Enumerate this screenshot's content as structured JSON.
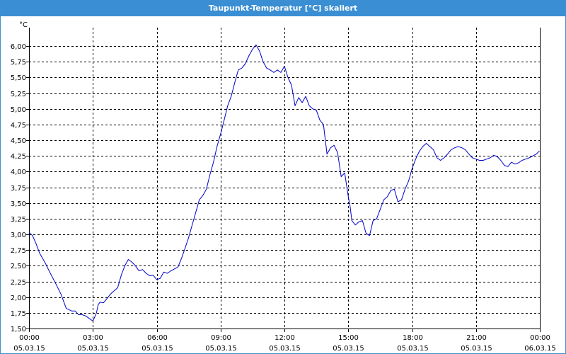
{
  "window": {
    "title": "Taupunkt-Temperatur [°C] skaliert"
  },
  "chart_data": {
    "type": "line",
    "title": "Taupunkt-Temperatur [°C] skaliert",
    "y_unit": "°C",
    "ylim": [
      1.5,
      6.25
    ],
    "xlim": [
      "05.03.15 00:00",
      "06.03.15 00:00"
    ],
    "y_ticks": [
      "1,50",
      "1,75",
      "2,00",
      "2,25",
      "2,50",
      "2,75",
      "3,00",
      "3,25",
      "3,50",
      "3,75",
      "4,00",
      "4,25",
      "4,50",
      "4,75",
      "5,00",
      "5,25",
      "5,50",
      "5,75",
      "6,00"
    ],
    "x_ticks": [
      {
        "time": "00:00",
        "date": "05.03.15"
      },
      {
        "time": "03:00",
        "date": "05.03.15"
      },
      {
        "time": "06:00",
        "date": "05.03.15"
      },
      {
        "time": "09:00",
        "date": "05.03.15"
      },
      {
        "time": "12:00",
        "date": "05.03.15"
      },
      {
        "time": "15:00",
        "date": "05.03.15"
      },
      {
        "time": "18:00",
        "date": "05.03.15"
      },
      {
        "time": "21:00",
        "date": "05.03.15"
      },
      {
        "time": "00:00",
        "date": "06.03.15"
      }
    ],
    "grid": true,
    "line_color": "#0000cc",
    "series": [
      {
        "x": [
          "00:00",
          "00:10",
          "00:20",
          "00:30",
          "00:45",
          "01:00",
          "01:15",
          "01:30",
          "01:45",
          "02:00",
          "02:10",
          "02:20",
          "02:30",
          "02:40",
          "02:50",
          "03:00",
          "03:05",
          "03:10",
          "03:15",
          "03:20",
          "03:30",
          "03:40",
          "03:50",
          "04:00",
          "04:10",
          "04:20",
          "04:30",
          "04:40",
          "04:50",
          "05:00",
          "05:10",
          "05:20",
          "05:30",
          "05:40",
          "05:50",
          "06:00",
          "06:10",
          "06:20",
          "06:30",
          "06:40",
          "06:50",
          "07:00",
          "07:10",
          "07:20",
          "07:30",
          "07:40",
          "07:50",
          "08:00",
          "08:10",
          "08:20",
          "08:30",
          "08:40",
          "08:50",
          "09:00",
          "09:10",
          "09:20",
          "09:30",
          "09:40",
          "09:50",
          "10:00",
          "10:10",
          "10:20",
          "10:30",
          "10:40",
          "10:50",
          "11:00",
          "11:10",
          "11:20",
          "11:30",
          "11:40",
          "11:50",
          "12:00",
          "12:10",
          "12:20",
          "12:30",
          "12:40",
          "12:50",
          "13:00",
          "13:10",
          "13:20",
          "13:30",
          "13:40",
          "13:50",
          "14:00",
          "14:10",
          "14:20",
          "14:30",
          "14:40",
          "14:50",
          "15:00",
          "15:05",
          "15:10",
          "15:20",
          "15:30",
          "15:40",
          "15:50",
          "16:00",
          "16:10",
          "16:20",
          "16:30",
          "16:40",
          "16:50",
          "17:00",
          "17:10",
          "17:20",
          "17:30",
          "17:40",
          "17:50",
          "18:00",
          "18:10",
          "18:20",
          "18:30",
          "18:40",
          "18:50",
          "19:00",
          "19:10",
          "19:20",
          "19:30",
          "19:40",
          "19:50",
          "20:00",
          "20:10",
          "20:20",
          "20:30",
          "20:40",
          "20:50",
          "21:00",
          "21:10",
          "21:20",
          "21:30",
          "21:40",
          "21:50",
          "22:00",
          "22:10",
          "22:20",
          "22:30",
          "22:40",
          "22:50",
          "23:00",
          "23:10",
          "23:20",
          "23:30",
          "23:40",
          "23:50",
          "23:59"
        ],
        "values": [
          3.03,
          2.98,
          2.85,
          2.7,
          2.55,
          2.38,
          2.22,
          2.05,
          1.82,
          1.78,
          1.78,
          1.72,
          1.72,
          1.7,
          1.66,
          1.62,
          1.68,
          1.75,
          1.88,
          1.92,
          1.91,
          1.98,
          2.05,
          2.1,
          2.15,
          2.35,
          2.5,
          2.6,
          2.56,
          2.5,
          2.42,
          2.44,
          2.38,
          2.34,
          2.35,
          2.28,
          2.3,
          2.4,
          2.38,
          2.42,
          2.45,
          2.48,
          2.62,
          2.78,
          2.95,
          3.15,
          3.35,
          3.55,
          3.62,
          3.72,
          3.95,
          4.15,
          4.4,
          4.6,
          4.82,
          5.05,
          5.2,
          5.42,
          5.62,
          5.65,
          5.72,
          5.85,
          5.95,
          6.02,
          5.92,
          5.75,
          5.65,
          5.62,
          5.58,
          5.62,
          5.58,
          5.68,
          5.5,
          5.38,
          5.05,
          5.18,
          5.1,
          5.2,
          5.05,
          5.0,
          4.98,
          4.82,
          4.75,
          4.28,
          4.38,
          4.42,
          4.3,
          3.92,
          3.98,
          3.6,
          3.45,
          3.22,
          3.15,
          3.2,
          3.22,
          3.02,
          2.98,
          3.22,
          3.25,
          3.4,
          3.55,
          3.6,
          3.7,
          3.72,
          3.52,
          3.55,
          3.72,
          3.85,
          4.05,
          4.2,
          4.32,
          4.4,
          4.45,
          4.4,
          4.35,
          4.22,
          4.18,
          4.22,
          4.28,
          4.35,
          4.38,
          4.4,
          4.38,
          4.35,
          4.28,
          4.22,
          4.2,
          4.18,
          4.18,
          4.2,
          4.22,
          4.26,
          4.24,
          4.18,
          4.1,
          4.08,
          4.15,
          4.12,
          4.14,
          4.18,
          4.2,
          4.22,
          4.25,
          4.28,
          4.33
        ]
      }
    ]
  }
}
